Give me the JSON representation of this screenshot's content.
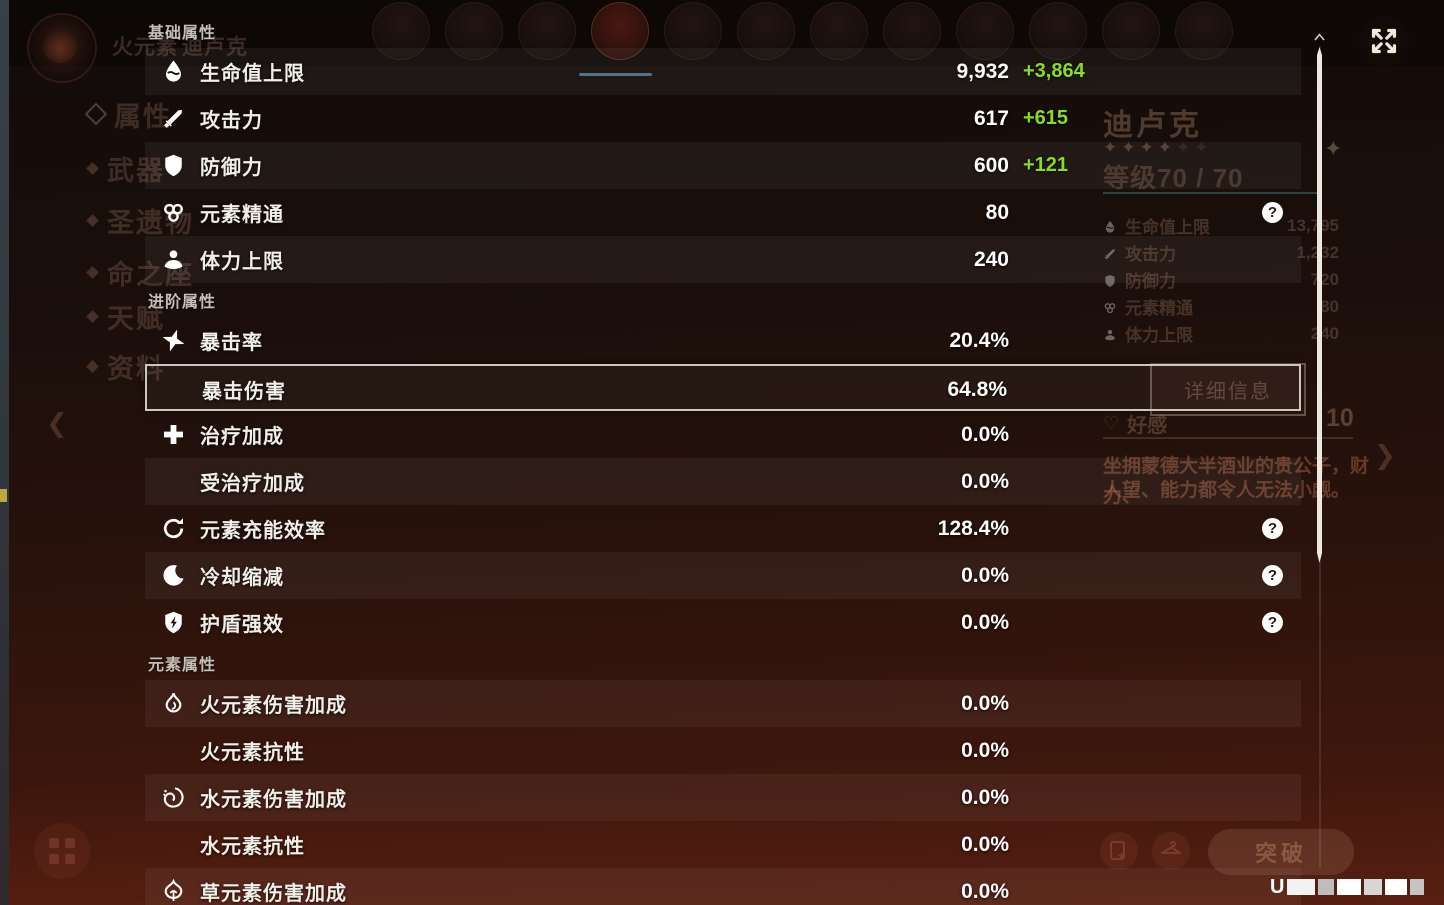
{
  "underlying": {
    "header": {
      "element_label": "火元素",
      "character_name": "迪卢克"
    },
    "menu": [
      {
        "label": "属性",
        "selected": true
      },
      {
        "label": "武器",
        "selected": false
      },
      {
        "label": "圣遗物",
        "selected": false
      },
      {
        "label": "命之座",
        "selected": false
      },
      {
        "label": "天赋",
        "selected": false
      },
      {
        "label": "资料",
        "selected": false
      }
    ],
    "panel": {
      "name": "迪卢克",
      "stars_bright": "✦✦✦✦",
      "stars_dim": "✦✦",
      "level_label": "等级70 / 70",
      "stats": [
        {
          "icon": "hp-icon",
          "label": "生命值上限",
          "value": "13,795"
        },
        {
          "icon": "atk-icon",
          "label": "攻击力",
          "value": "1,232"
        },
        {
          "icon": "def-icon",
          "label": "防御力",
          "value": "720"
        },
        {
          "icon": "em-icon",
          "label": "元素精通",
          "value": "80"
        },
        {
          "icon": "stamina-icon",
          "label": "体力上限",
          "value": "240"
        }
      ],
      "details_button": "详细信息",
      "friendship_label": "好感",
      "friendship_value": "10",
      "description_line1": "坐拥蒙德大半酒业的贵公子，财力、",
      "description_line2": "人望、能力都令人无法小觑。"
    },
    "bottom": {
      "ascend_button": "突破"
    },
    "uid_prefix": "U"
  },
  "stats_overlay": {
    "sections": [
      {
        "title": "基础属性",
        "rows": [
          {
            "icon": "hp-icon",
            "label": "生命值上限",
            "value": "9,932",
            "bonus": "+3,864",
            "striped": true
          },
          {
            "icon": "atk-icon",
            "label": "攻击力",
            "value": "617",
            "bonus": "+615"
          },
          {
            "icon": "def-icon",
            "label": "防御力",
            "value": "600",
            "bonus": "+121",
            "striped": true
          },
          {
            "icon": "em-icon",
            "label": "元素精通",
            "value": "80",
            "help": true
          },
          {
            "icon": "stamina-icon",
            "label": "体力上限",
            "value": "240",
            "striped": true
          }
        ]
      },
      {
        "title": "进阶属性",
        "rows": [
          {
            "icon": "crit-rate-icon",
            "label": "暴击率",
            "value": "20.4%"
          },
          {
            "icon": null,
            "label": "暴击伤害",
            "value": "64.8%",
            "highlighted": true
          },
          {
            "icon": "healing-bonus-icon",
            "label": "治疗加成",
            "value": "0.0%"
          },
          {
            "icon": null,
            "label": "受治疗加成",
            "value": "0.0%",
            "striped": true
          },
          {
            "icon": "energy-recharge-icon",
            "label": "元素充能效率",
            "value": "128.4%",
            "help": true
          },
          {
            "icon": "cd-reduction-icon",
            "label": "冷却缩减",
            "value": "0.0%",
            "help": true,
            "striped": true
          },
          {
            "icon": "shield-strength-icon",
            "label": "护盾强效",
            "value": "0.0%",
            "help": true
          }
        ]
      },
      {
        "title": "元素属性",
        "rows": [
          {
            "icon": "pyro-icon",
            "label": "火元素伤害加成",
            "value": "0.0%",
            "striped": true
          },
          {
            "icon": null,
            "label": "火元素抗性",
            "value": "0.0%"
          },
          {
            "icon": "hydro-icon",
            "label": "水元素伤害加成",
            "value": "0.0%",
            "striped": true
          },
          {
            "icon": null,
            "label": "水元素抗性",
            "value": "0.0%"
          },
          {
            "icon": "dendro-icon",
            "label": "草元素伤害加成",
            "value": "0.0%",
            "striped": true
          }
        ]
      }
    ],
    "colors": {
      "bonus_green": "#8bdb1f",
      "highlight_border": "#cdc6bf",
      "selected_underline": "#4a6b7c"
    }
  }
}
